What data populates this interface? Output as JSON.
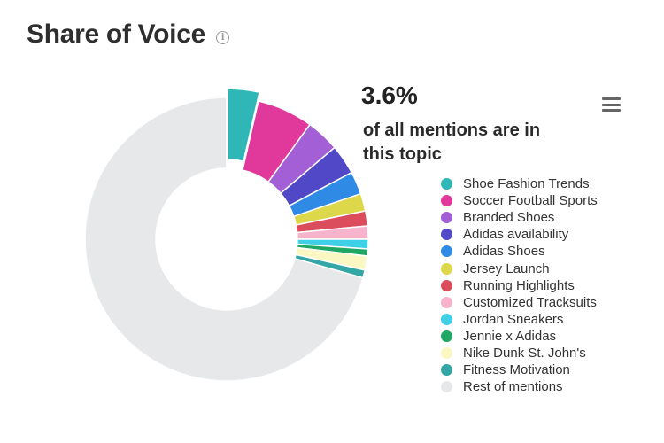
{
  "header": {
    "title": "Share of Voice",
    "info_icon": "info-icon"
  },
  "highlight": {
    "value": "3.6%",
    "caption": "of all mentions are in this topic"
  },
  "menu": {
    "icon": "hamburger-menu-icon"
  },
  "chart_data": {
    "type": "pie",
    "variant": "donut",
    "legend_position": "right",
    "highlighted_series": "Shoe Fashion Trends",
    "series": [
      {
        "name": "Shoe Fashion Trends",
        "value": 3.6,
        "color": "#2fb7b7"
      },
      {
        "name": "Soccer Football Sports",
        "value": 6.4,
        "color": "#e0399b"
      },
      {
        "name": "Branded Shoes",
        "value": 3.8,
        "color": "#a35fd6"
      },
      {
        "name": "Adidas availability",
        "value": 3.4,
        "color": "#5148c8"
      },
      {
        "name": "Adidas Shoes",
        "value": 2.6,
        "color": "#2f8ae6"
      },
      {
        "name": "Jersey Launch",
        "value": 2.0,
        "color": "#dcd84a"
      },
      {
        "name": "Running Highlights",
        "value": 1.7,
        "color": "#db4d5c"
      },
      {
        "name": "Customized Tracksuits",
        "value": 1.5,
        "color": "#f7b3cb"
      },
      {
        "name": "Jordan Sneakers",
        "value": 1.1,
        "color": "#3fd0e8"
      },
      {
        "name": "Jennie x Adidas",
        "value": 0.8,
        "color": "#1fa763"
      },
      {
        "name": "Nike Dunk St. John's",
        "value": 1.6,
        "color": "#fbf7c3"
      },
      {
        "name": "Fitness Motivation",
        "value": 0.9,
        "color": "#35a6a6"
      },
      {
        "name": "Rest of mentions",
        "value": 70.6,
        "color": "#e6e8ea"
      }
    ]
  }
}
